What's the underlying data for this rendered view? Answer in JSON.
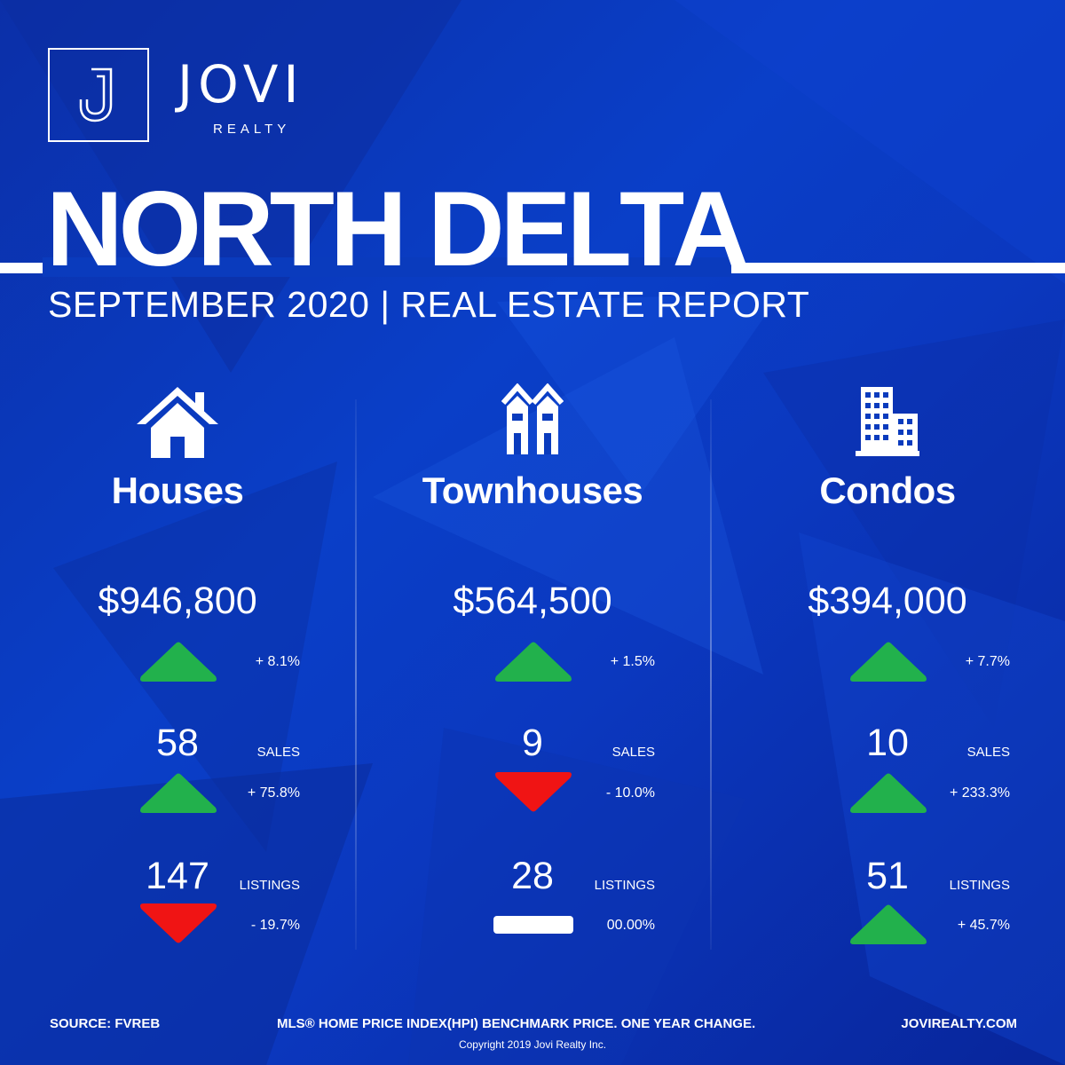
{
  "brand": {
    "name": "JOVI",
    "sub": "REALTY",
    "logo_icon": "j-monogram-icon"
  },
  "title": "NORTH DELTA",
  "subtitle": "SEPTEMBER 2020 | REAL ESTATE REPORT",
  "colors": {
    "background": "#0a3bbd",
    "up": "#22b14c",
    "down": "#f01414",
    "text": "#ffffff"
  },
  "columns": [
    {
      "icon": "house-icon",
      "name": "Houses",
      "price": "$946,800",
      "price_change": {
        "direction": "up",
        "text": "+ 8.1%"
      },
      "sales": {
        "value": "58",
        "label": "SALES",
        "direction": "up",
        "text": "+ 75.8%"
      },
      "listings": {
        "value": "147",
        "label": "LISTINGS",
        "direction": "down",
        "text": "- 19.7%"
      }
    },
    {
      "icon": "townhouse-icon",
      "name": "Townhouses",
      "price": "$564,500",
      "price_change": {
        "direction": "up",
        "text": "+ 1.5%"
      },
      "sales": {
        "value": "9",
        "label": "SALES",
        "direction": "down",
        "text": "- 10.0%"
      },
      "listings": {
        "value": "28",
        "label": "LISTINGS",
        "direction": "flat",
        "text": "00.00%"
      }
    },
    {
      "icon": "condo-building-icon",
      "name": "Condos",
      "price": "$394,000",
      "price_change": {
        "direction": "up",
        "text": "+ 7.7%"
      },
      "sales": {
        "value": "10",
        "label": "SALES",
        "direction": "up",
        "text": "+ 233.3%"
      },
      "listings": {
        "value": "51",
        "label": "LISTINGS",
        "direction": "up",
        "text": "+ 45.7%"
      }
    }
  ],
  "footer": {
    "source": "SOURCE:  FVREB",
    "note": "MLS® HOME PRICE INDEX(HPI) BENCHMARK PRICE. ONE YEAR CHANGE.",
    "website": "JOVIREALTY.COM",
    "copyright": "Copyright 2019 Jovi Realty Inc."
  }
}
